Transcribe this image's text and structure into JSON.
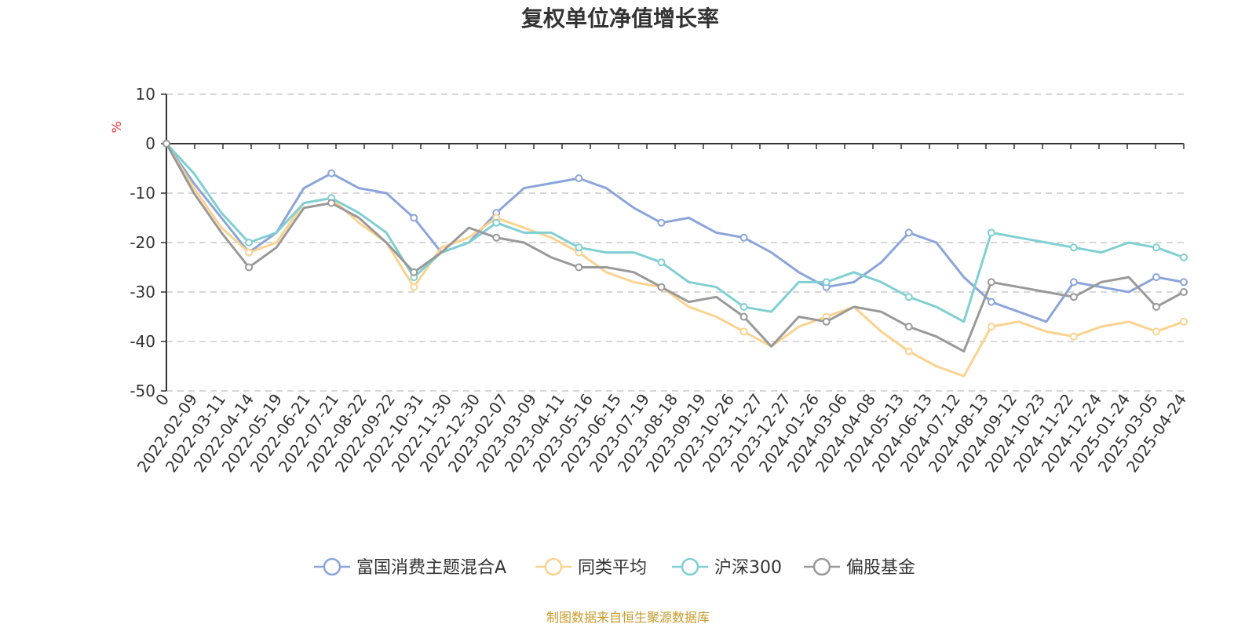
{
  "chart_data": {
    "type": "line",
    "title": "复权单位净值增长率",
    "ylabel": "%",
    "ylim": [
      -50,
      10
    ],
    "yticks": [
      10,
      0,
      -10,
      -20,
      -30,
      -40,
      -50
    ],
    "grid": true,
    "legend_position": "bottom",
    "x_first_label": "0",
    "x_labels": [
      "2022-02-09",
      "2022-03-11",
      "2022-04-14",
      "2022-05-19",
      "2022-06-21",
      "2022-07-21",
      "2022-08-22",
      "2022-09-22",
      "2022-10-31",
      "2022-11-30",
      "2022-12-30",
      "2023-02-07",
      "2023-03-09",
      "2023-04-11",
      "2023-05-16",
      "2023-06-15",
      "2023-07-19",
      "2023-08-18",
      "2023-09-19",
      "2023-10-26",
      "2023-11-27",
      "2023-12-27",
      "2024-01-26",
      "2024-03-06",
      "2024-04-08",
      "2024-05-13",
      "2024-06-13",
      "2024-07-12",
      "2024-08-13",
      "2024-09-12",
      "2024-10-23",
      "2024-11-22",
      "2024-12-24",
      "2025-01-24",
      "2025-03-05",
      "2025-04-24"
    ],
    "series": [
      {
        "name": "富国消费主题混合A",
        "color": "#8aa5d9",
        "values": [
          0,
          -8,
          -15,
          -22,
          -18,
          -9,
          -6,
          -9,
          -10,
          -15,
          -22,
          -20,
          -14,
          -9,
          -8,
          -7,
          -9,
          -13,
          -16,
          -15,
          -18,
          -19,
          -22,
          -26,
          -29,
          -28,
          -24,
          -18,
          -20,
          -27,
          -32,
          -34,
          -36,
          -28,
          -29,
          -30,
          -27,
          -28
        ]
      },
      {
        "name": "同类平均",
        "color": "#fbd28e",
        "values": [
          0,
          -9,
          -17,
          -22,
          -20,
          -12,
          -11,
          -16,
          -20,
          -29,
          -21,
          -19,
          -15,
          -17,
          -19,
          -22,
          -26,
          -28,
          -29,
          -33,
          -35,
          -38,
          -41,
          -37,
          -35,
          -33,
          -38,
          -42,
          -45,
          -47,
          -37,
          -36,
          -38,
          -39,
          -37,
          -36,
          -38,
          -36
        ]
      },
      {
        "name": "沪深300",
        "color": "#7fcfd3",
        "values": [
          0,
          -6,
          -14,
          -20,
          -18,
          -12,
          -11,
          -14,
          -18,
          -27,
          -22,
          -20,
          -16,
          -18,
          -18,
          -21,
          -22,
          -22,
          -24,
          -28,
          -29,
          -33,
          -34,
          -28,
          -28,
          -26,
          -28,
          -31,
          -33,
          -36,
          -18,
          -19,
          -20,
          -21,
          -22,
          -20,
          -21,
          -23
        ]
      },
      {
        "name": "偏股基金",
        "color": "#999999",
        "values": [
          0,
          -10,
          -18,
          -25,
          -21,
          -13,
          -12,
          -15,
          -20,
          -26,
          -22,
          -17,
          -19,
          -20,
          -23,
          -25,
          -25,
          -26,
          -29,
          -32,
          -31,
          -35,
          -41,
          -35,
          -36,
          -33,
          -34,
          -37,
          -39,
          -42,
          -28,
          -29,
          -30,
          -31,
          -28,
          -27,
          -33,
          -30
        ]
      }
    ]
  },
  "source": "制图数据来自恒生聚源数据库"
}
